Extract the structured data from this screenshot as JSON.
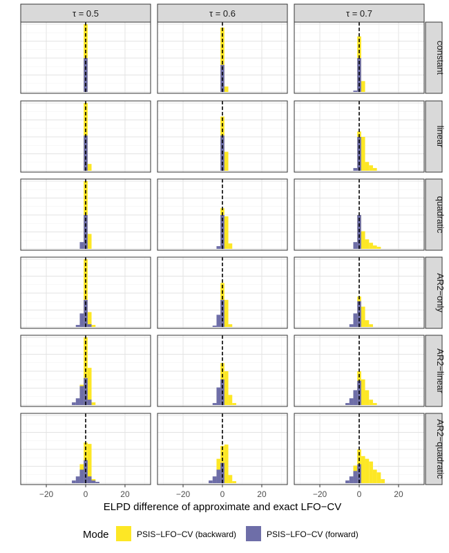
{
  "chart_data": {
    "type": "histogram",
    "xlabel": "ELPD difference of approximate and exact LFO−CV",
    "xlim": [
      -33,
      33
    ],
    "x_ticks": [
      -20,
      0,
      20
    ],
    "x_tick_labels": [
      "−20",
      "0",
      "20"
    ],
    "bin_width": 2,
    "reference_line_x": 0,
    "grid": true,
    "legend_position": "bottom",
    "legend": {
      "title": "Mode",
      "entries": [
        {
          "label": "PSIS−LFO−CV (backward)",
          "color": "#FDE725"
        },
        {
          "label": "PSIS−LFO−CV (forward)",
          "color": "#6E6EA8"
        }
      ]
    },
    "columns": [
      "τ = 0.5",
      "τ = 0.6",
      "τ = 0.7"
    ],
    "rows": [
      "constant",
      "linear",
      "quadratic",
      "AR2−only",
      "AR2−linear",
      "AR2−quadratic"
    ],
    "y_max": 100,
    "panels": [
      {
        "row": 0,
        "col": 0,
        "backward": [
          {
            "x": 0,
            "count": 100
          }
        ],
        "forward": [
          {
            "x": 0,
            "count": 50
          }
        ]
      },
      {
        "row": 0,
        "col": 1,
        "backward": [
          {
            "x": 0,
            "count": 95
          },
          {
            "x": 2,
            "count": 8
          }
        ],
        "forward": [
          {
            "x": 0,
            "count": 40
          }
        ]
      },
      {
        "row": 0,
        "col": 2,
        "backward": [
          {
            "x": 0,
            "count": 82
          },
          {
            "x": 2,
            "count": 16
          }
        ],
        "forward": [
          {
            "x": -2,
            "count": 2
          },
          {
            "x": 0,
            "count": 50
          }
        ]
      },
      {
        "row": 1,
        "col": 0,
        "backward": [
          {
            "x": 0,
            "count": 100
          },
          {
            "x": 2,
            "count": 10
          }
        ],
        "forward": [
          {
            "x": 0,
            "count": 52
          }
        ]
      },
      {
        "row": 1,
        "col": 1,
        "backward": [
          {
            "x": 0,
            "count": 80
          },
          {
            "x": 2,
            "count": 28
          }
        ],
        "forward": [
          {
            "x": 0,
            "count": 52
          }
        ]
      },
      {
        "row": 1,
        "col": 2,
        "backward": [
          {
            "x": 0,
            "count": 58
          },
          {
            "x": 2,
            "count": 50
          },
          {
            "x": 4,
            "count": 13
          },
          {
            "x": 6,
            "count": 8
          },
          {
            "x": 8,
            "count": 4
          }
        ],
        "forward": [
          {
            "x": -2,
            "count": 4
          },
          {
            "x": 0,
            "count": 50
          }
        ]
      },
      {
        "row": 2,
        "col": 0,
        "backward": [
          {
            "x": 0,
            "count": 100
          },
          {
            "x": 2,
            "count": 22
          }
        ],
        "forward": [
          {
            "x": -2,
            "count": 10
          },
          {
            "x": 0,
            "count": 50
          }
        ]
      },
      {
        "row": 2,
        "col": 1,
        "backward": [
          {
            "x": 0,
            "count": 60
          },
          {
            "x": 2,
            "count": 48
          },
          {
            "x": 4,
            "count": 8
          }
        ],
        "forward": [
          {
            "x": -2,
            "count": 4
          },
          {
            "x": 0,
            "count": 50
          }
        ]
      },
      {
        "row": 2,
        "col": 2,
        "backward": [
          {
            "x": 0,
            "count": 50
          },
          {
            "x": 2,
            "count": 26
          },
          {
            "x": 4,
            "count": 14
          },
          {
            "x": 6,
            "count": 9
          },
          {
            "x": 8,
            "count": 5
          },
          {
            "x": 10,
            "count": 3
          }
        ],
        "forward": [
          {
            "x": -2,
            "count": 10
          },
          {
            "x": 0,
            "count": 50
          }
        ]
      },
      {
        "row": 3,
        "col": 0,
        "backward": [
          {
            "x": 0,
            "count": 100
          },
          {
            "x": 2,
            "count": 22
          },
          {
            "x": 4,
            "count": 3
          }
        ],
        "forward": [
          {
            "x": -4,
            "count": 3
          },
          {
            "x": -2,
            "count": 20
          },
          {
            "x": 0,
            "count": 40
          },
          {
            "x": 2,
            "count": 4
          }
        ]
      },
      {
        "row": 3,
        "col": 1,
        "backward": [
          {
            "x": 0,
            "count": 65
          },
          {
            "x": 2,
            "count": 40
          },
          {
            "x": 4,
            "count": 4
          }
        ],
        "forward": [
          {
            "x": -4,
            "count": 2
          },
          {
            "x": -2,
            "count": 18
          },
          {
            "x": 0,
            "count": 40
          }
        ]
      },
      {
        "row": 3,
        "col": 2,
        "backward": [
          {
            "x": 0,
            "count": 45
          },
          {
            "x": 2,
            "count": 30
          },
          {
            "x": 4,
            "count": 10
          },
          {
            "x": 6,
            "count": 4
          }
        ],
        "forward": [
          {
            "x": -4,
            "count": 4
          },
          {
            "x": -2,
            "count": 20
          },
          {
            "x": 0,
            "count": 38
          }
        ]
      },
      {
        "row": 4,
        "col": 0,
        "backward": [
          {
            "x": -2,
            "count": 30
          },
          {
            "x": 0,
            "count": 100
          },
          {
            "x": 2,
            "count": 55
          },
          {
            "x": 4,
            "count": 4
          }
        ],
        "forward": [
          {
            "x": -6,
            "count": 4
          },
          {
            "x": -4,
            "count": 10
          },
          {
            "x": -2,
            "count": 28
          },
          {
            "x": 0,
            "count": 40
          },
          {
            "x": 2,
            "count": 8
          }
        ]
      },
      {
        "row": 4,
        "col": 1,
        "backward": [
          {
            "x": -2,
            "count": 22
          },
          {
            "x": 0,
            "count": 62
          },
          {
            "x": 2,
            "count": 50
          },
          {
            "x": 4,
            "count": 15
          },
          {
            "x": 6,
            "count": 3
          }
        ],
        "forward": [
          {
            "x": -4,
            "count": 3
          },
          {
            "x": -2,
            "count": 26
          },
          {
            "x": 0,
            "count": 38
          }
        ]
      },
      {
        "row": 4,
        "col": 2,
        "backward": [
          {
            "x": -6,
            "count": 2
          },
          {
            "x": -2,
            "count": 20
          },
          {
            "x": 0,
            "count": 50
          },
          {
            "x": 2,
            "count": 38
          },
          {
            "x": 4,
            "count": 22
          },
          {
            "x": 6,
            "count": 8
          },
          {
            "x": 8,
            "count": 3
          }
        ],
        "forward": [
          {
            "x": -6,
            "count": 3
          },
          {
            "x": -4,
            "count": 10
          },
          {
            "x": -2,
            "count": 22
          },
          {
            "x": 0,
            "count": 36
          }
        ]
      },
      {
        "row": 5,
        "col": 0,
        "backward": [
          {
            "x": -2,
            "count": 28
          },
          {
            "x": 0,
            "count": 60
          },
          {
            "x": 2,
            "count": 58
          },
          {
            "x": 4,
            "count": 6
          }
        ],
        "forward": [
          {
            "x": -6,
            "count": 4
          },
          {
            "x": -4,
            "count": 10
          },
          {
            "x": -2,
            "count": 20
          },
          {
            "x": 0,
            "count": 34
          },
          {
            "x": 2,
            "count": 10
          },
          {
            "x": 4,
            "count": 4
          },
          {
            "x": 6,
            "count": 2
          }
        ]
      },
      {
        "row": 5,
        "col": 1,
        "backward": [
          {
            "x": -2,
            "count": 36
          },
          {
            "x": 0,
            "count": 55
          },
          {
            "x": 2,
            "count": 57
          },
          {
            "x": 4,
            "count": 12
          },
          {
            "x": 6,
            "count": 3
          }
        ],
        "forward": [
          {
            "x": -6,
            "count": 4
          },
          {
            "x": -4,
            "count": 10
          },
          {
            "x": -2,
            "count": 20
          },
          {
            "x": 0,
            "count": 30
          }
        ]
      },
      {
        "row": 5,
        "col": 2,
        "backward": [
          {
            "x": -2,
            "count": 26
          },
          {
            "x": 0,
            "count": 50
          },
          {
            "x": 2,
            "count": 40
          },
          {
            "x": 4,
            "count": 36
          },
          {
            "x": 6,
            "count": 32
          },
          {
            "x": 8,
            "count": 20
          },
          {
            "x": 10,
            "count": 16
          },
          {
            "x": 12,
            "count": 6
          }
        ],
        "forward": [
          {
            "x": -6,
            "count": 4
          },
          {
            "x": -4,
            "count": 10
          },
          {
            "x": -2,
            "count": 18
          },
          {
            "x": 0,
            "count": 28
          }
        ]
      }
    ]
  }
}
